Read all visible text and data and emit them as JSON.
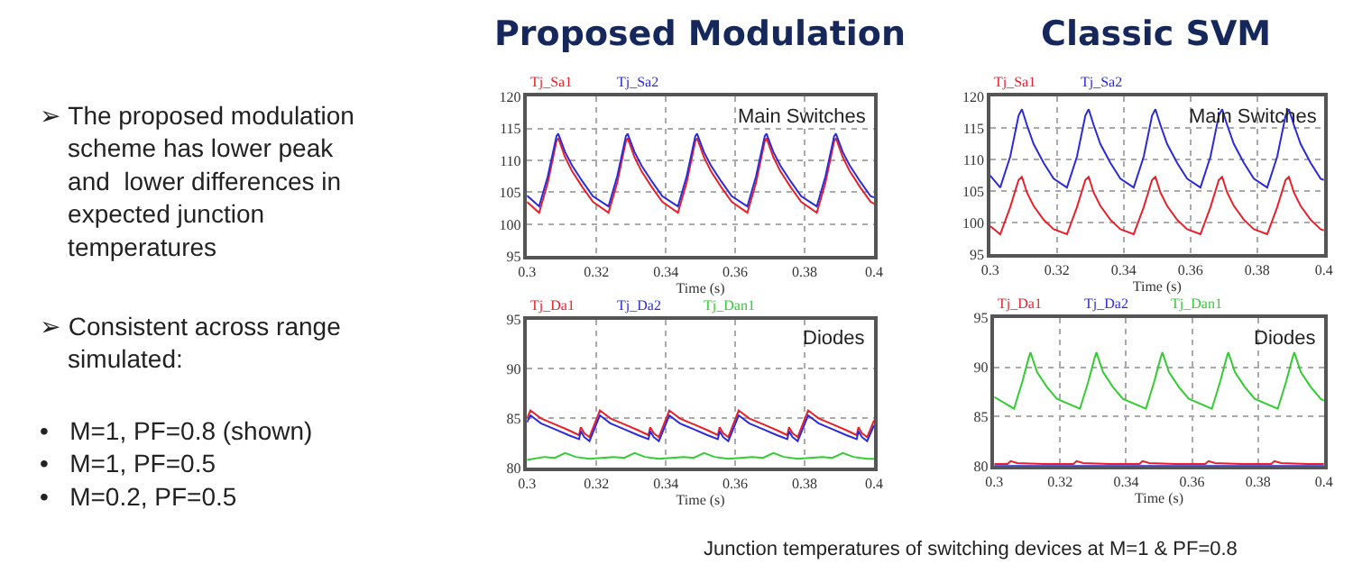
{
  "chart_data": [
    {
      "type": "other",
      "annotations": [
        "➢ The proposed modulation\n    scheme has lower peak\n    and  lower differences in\n    expected junction\n    temperatures",
        "➢ Consistent across range\n    simulated:",
        "•   M=1, PF=0.8 (shown)\n•   M=1, PF=0.5\n•   M=0.2, PF=0.5"
      ]
    },
    {
      "type": "line",
      "title": "Proposed Modulation",
      "xlabel": "Time (s)",
      "xlim": [
        0.3,
        0.4
      ],
      "xticks": [
        0.3,
        0.32,
        0.34,
        0.36,
        0.38,
        0.4
      ],
      "ylim": [
        95,
        120
      ],
      "yticks": [
        95,
        100,
        105,
        110,
        115,
        120
      ],
      "grid": true,
      "legend": "top left",
      "annotations": [
        "Main Switches"
      ],
      "series": [
        {
          "name": "Tj_Sa1",
          "color": "#e8202a",
          "x": [
            0.3,
            0.3035,
            0.306,
            0.3085,
            0.309,
            0.311,
            0.313,
            0.316,
            0.319,
            0.3235,
            0.326,
            0.3285,
            0.329,
            0.331,
            0.333,
            0.336,
            0.339,
            0.3435,
            0.346,
            0.3485,
            0.349,
            0.351,
            0.353,
            0.356,
            0.359,
            0.3635,
            0.366,
            0.3685,
            0.369,
            0.371,
            0.373,
            0.376,
            0.379,
            0.3835,
            0.386,
            0.3885,
            0.389,
            0.391,
            0.393,
            0.396,
            0.399,
            0.4
          ],
          "values": [
            103.5,
            101.8,
            106.5,
            113,
            113.5,
            110.5,
            108.3,
            105.8,
            103.5,
            101.8,
            106.5,
            113,
            113.5,
            110.5,
            108.3,
            105.8,
            103.5,
            101.8,
            106.5,
            113,
            113.5,
            110.5,
            108.3,
            105.8,
            103.5,
            101.8,
            106.5,
            113,
            113.5,
            110.5,
            108.3,
            105.8,
            103.5,
            101.8,
            106.5,
            113,
            113.5,
            110.5,
            108.3,
            105.8,
            103.5,
            103.2
          ]
        },
        {
          "name": "Tj_Sa2",
          "color": "#2b2bd9",
          "x": [
            0.3,
            0.3035,
            0.306,
            0.3085,
            0.309,
            0.311,
            0.313,
            0.316,
            0.319,
            0.3235,
            0.326,
            0.3285,
            0.329,
            0.331,
            0.333,
            0.336,
            0.339,
            0.3435,
            0.346,
            0.3485,
            0.349,
            0.351,
            0.353,
            0.356,
            0.359,
            0.3635,
            0.366,
            0.3685,
            0.369,
            0.371,
            0.373,
            0.376,
            0.379,
            0.3835,
            0.386,
            0.3885,
            0.389,
            0.391,
            0.393,
            0.396,
            0.399,
            0.4
          ],
          "values": [
            104.5,
            102.8,
            107.5,
            113.8,
            114.2,
            111.3,
            109.2,
            106.7,
            104.4,
            102.8,
            107.5,
            113.8,
            114.2,
            111.3,
            109.2,
            106.7,
            104.4,
            102.8,
            107.5,
            113.8,
            114.2,
            111.3,
            109.2,
            106.7,
            104.4,
            102.8,
            107.5,
            113.8,
            114.2,
            111.3,
            109.2,
            106.7,
            104.4,
            102.8,
            107.5,
            113.8,
            114.2,
            111.3,
            109.2,
            106.7,
            104.4,
            104.2
          ]
        }
      ]
    },
    {
      "type": "line",
      "title": "Classic SVM",
      "xlabel": "Time (s)",
      "xlim": [
        0.3,
        0.4
      ],
      "xticks": [
        0.3,
        0.32,
        0.34,
        0.36,
        0.38,
        0.4
      ],
      "ylim": [
        95,
        120
      ],
      "yticks": [
        95,
        100,
        105,
        110,
        115,
        120
      ],
      "grid": true,
      "legend": "top left",
      "annotations": [
        "Main Switches"
      ],
      "series": [
        {
          "name": "Tj_Sa1",
          "color": "#e8202a",
          "x": [
            0.3,
            0.303,
            0.306,
            0.3085,
            0.3095,
            0.311,
            0.313,
            0.316,
            0.319,
            0.323,
            0.326,
            0.3285,
            0.3295,
            0.331,
            0.333,
            0.336,
            0.339,
            0.343,
            0.346,
            0.3485,
            0.3495,
            0.351,
            0.353,
            0.356,
            0.359,
            0.363,
            0.366,
            0.3685,
            0.3695,
            0.371,
            0.373,
            0.376,
            0.379,
            0.383,
            0.386,
            0.3885,
            0.3895,
            0.391,
            0.393,
            0.396,
            0.399,
            0.4
          ],
          "values": [
            99.5,
            98.2,
            102.5,
            106.8,
            107.3,
            104.8,
            102.7,
            100.5,
            99,
            98.2,
            102.5,
            106.8,
            107.3,
            104.8,
            102.7,
            100.5,
            99,
            98.2,
            102.5,
            106.8,
            107.3,
            104.8,
            102.7,
            100.5,
            99,
            98.2,
            102.5,
            106.8,
            107.3,
            104.8,
            102.7,
            100.5,
            99,
            98.2,
            102.5,
            106.8,
            107.3,
            104.8,
            102.7,
            100.5,
            99,
            98.8
          ]
        },
        {
          "name": "Tj_Sa2",
          "color": "#2b2bd9",
          "x": [
            0.3,
            0.303,
            0.306,
            0.3085,
            0.3095,
            0.311,
            0.313,
            0.316,
            0.319,
            0.323,
            0.326,
            0.3285,
            0.3295,
            0.331,
            0.333,
            0.336,
            0.339,
            0.343,
            0.346,
            0.3485,
            0.3495,
            0.351,
            0.353,
            0.356,
            0.359,
            0.363,
            0.366,
            0.3685,
            0.3695,
            0.371,
            0.373,
            0.376,
            0.379,
            0.383,
            0.386,
            0.3885,
            0.3895,
            0.391,
            0.393,
            0.396,
            0.399,
            0.4
          ],
          "values": [
            107.5,
            105.6,
            110.5,
            117,
            118,
            115.5,
            112.5,
            109.5,
            107,
            105.6,
            110.5,
            117,
            118,
            115.5,
            112.5,
            109.5,
            107,
            105.6,
            110.5,
            117,
            118,
            115.5,
            112.5,
            109.5,
            107,
            105.6,
            110.5,
            117,
            118,
            115.5,
            112.5,
            109.5,
            107,
            105.6,
            110.5,
            117,
            118,
            115.5,
            112.5,
            109.5,
            107,
            106.8
          ]
        }
      ]
    },
    {
      "type": "line",
      "xlabel": "Time (s)",
      "xlim": [
        0.3,
        0.4
      ],
      "xticks": [
        0.3,
        0.32,
        0.34,
        0.36,
        0.38,
        0.4
      ],
      "ylim": [
        80,
        95
      ],
      "yticks": [
        80,
        85,
        90,
        95
      ],
      "grid": true,
      "legend": "top left",
      "annotations": [
        "Diodes"
      ],
      "series": [
        {
          "name": "Tj_Da1",
          "color": "#e8202a",
          "x": [
            0.3,
            0.301,
            0.304,
            0.308,
            0.312,
            0.315,
            0.3155,
            0.3165,
            0.318,
            0.321,
            0.324,
            0.328,
            0.332,
            0.335,
            0.3355,
            0.3365,
            0.338,
            0.341,
            0.344,
            0.348,
            0.352,
            0.355,
            0.3555,
            0.3565,
            0.358,
            0.361,
            0.364,
            0.368,
            0.372,
            0.375,
            0.3755,
            0.3765,
            0.378,
            0.381,
            0.384,
            0.388,
            0.392,
            0.395,
            0.3955,
            0.3965,
            0.398,
            0.4
          ],
          "values": [
            85.0,
            85.8,
            85.0,
            84.4,
            83.8,
            83.3,
            84.1,
            83.5,
            83.1,
            85.8,
            85.0,
            84.4,
            83.8,
            83.3,
            84.1,
            83.5,
            83.1,
            85.8,
            85.0,
            84.4,
            83.8,
            83.3,
            84.1,
            83.5,
            83.1,
            85.8,
            85.0,
            84.4,
            83.8,
            83.3,
            84.1,
            83.5,
            83.1,
            85.8,
            85.0,
            84.4,
            83.8,
            83.3,
            84.1,
            83.5,
            83.1,
            84.8
          ]
        },
        {
          "name": "Tj_Da2",
          "color": "#2b2bd9",
          "x": [
            0.3,
            0.301,
            0.304,
            0.308,
            0.312,
            0.315,
            0.3155,
            0.3165,
            0.318,
            0.321,
            0.324,
            0.328,
            0.332,
            0.335,
            0.3355,
            0.3365,
            0.338,
            0.341,
            0.344,
            0.348,
            0.352,
            0.355,
            0.3555,
            0.3565,
            0.358,
            0.361,
            0.364,
            0.368,
            0.372,
            0.375,
            0.3755,
            0.3765,
            0.378,
            0.381,
            0.384,
            0.388,
            0.392,
            0.395,
            0.3955,
            0.3965,
            0.398,
            0.4
          ],
          "values": [
            84.6,
            85.3,
            84.5,
            83.9,
            83.3,
            82.9,
            83.7,
            83.1,
            82.7,
            85.3,
            84.5,
            83.9,
            83.3,
            82.9,
            83.7,
            83.1,
            82.7,
            85.3,
            84.5,
            83.9,
            83.3,
            82.9,
            83.7,
            83.1,
            82.7,
            85.3,
            84.5,
            83.9,
            83.3,
            82.9,
            83.7,
            83.1,
            82.7,
            85.3,
            84.5,
            83.9,
            83.3,
            82.9,
            83.7,
            83.1,
            82.7,
            84.3
          ]
        },
        {
          "name": "Tj_Dan1",
          "color": "#33cc33",
          "x": [
            0.3,
            0.305,
            0.308,
            0.311,
            0.314,
            0.318,
            0.325,
            0.328,
            0.331,
            0.334,
            0.338,
            0.345,
            0.348,
            0.351,
            0.354,
            0.358,
            0.365,
            0.368,
            0.371,
            0.374,
            0.378,
            0.385,
            0.388,
            0.391,
            0.394,
            0.398,
            0.4
          ],
          "values": [
            80.8,
            81.1,
            81.0,
            81.5,
            81.1,
            80.9,
            81.1,
            81.0,
            81.5,
            81.1,
            80.9,
            81.1,
            81.0,
            81.5,
            81.1,
            80.9,
            81.1,
            81.0,
            81.5,
            81.1,
            80.9,
            81.1,
            81.0,
            81.5,
            81.1,
            80.9,
            80.9
          ]
        }
      ]
    },
    {
      "type": "line",
      "xlabel": "Time (s)",
      "xlim": [
        0.3,
        0.4
      ],
      "xticks": [
        0.3,
        0.32,
        0.34,
        0.36,
        0.38,
        0.4
      ],
      "ylim": [
        80,
        95
      ],
      "yticks": [
        80,
        85,
        90,
        95
      ],
      "grid": true,
      "legend": "top left",
      "annotations": [
        "Diodes",
        "Junction temperatures of switching devices at M=1 & PF=0.8"
      ],
      "series": [
        {
          "name": "Tj_Da1",
          "color": "#e8202a",
          "x": [
            0.3,
            0.304,
            0.305,
            0.307,
            0.315,
            0.324,
            0.325,
            0.327,
            0.335,
            0.344,
            0.345,
            0.347,
            0.355,
            0.364,
            0.365,
            0.367,
            0.375,
            0.384,
            0.385,
            0.387,
            0.395,
            0.4
          ],
          "values": [
            80.2,
            80.2,
            80.5,
            80.3,
            80.2,
            80.2,
            80.5,
            80.3,
            80.2,
            80.2,
            80.5,
            80.3,
            80.2,
            80.2,
            80.5,
            80.3,
            80.2,
            80.2,
            80.5,
            80.3,
            80.2,
            80.2
          ]
        },
        {
          "name": "Tj_Da2",
          "color": "#2b2bd9",
          "x": [
            0.3,
            0.4
          ],
          "values": [
            80.0,
            80.0
          ]
        },
        {
          "name": "Tj_Dan1",
          "color": "#33cc33",
          "x": [
            0.3,
            0.306,
            0.3085,
            0.3105,
            0.311,
            0.313,
            0.316,
            0.319,
            0.326,
            0.3285,
            0.3305,
            0.331,
            0.333,
            0.336,
            0.339,
            0.346,
            0.3485,
            0.3505,
            0.351,
            0.353,
            0.356,
            0.359,
            0.366,
            0.3685,
            0.3705,
            0.371,
            0.373,
            0.376,
            0.379,
            0.386,
            0.3885,
            0.3905,
            0.391,
            0.393,
            0.396,
            0.399,
            0.4
          ],
          "values": [
            87.0,
            85.8,
            88.5,
            91.0,
            91.5,
            89.5,
            88.0,
            86.8,
            85.8,
            88.5,
            91.0,
            91.5,
            89.5,
            88.0,
            86.8,
            85.8,
            88.5,
            91.0,
            91.5,
            89.5,
            88.0,
            86.8,
            85.8,
            88.5,
            91.0,
            91.5,
            89.5,
            88.0,
            86.8,
            85.8,
            88.5,
            91.0,
            91.5,
            89.5,
            88.0,
            86.8,
            86.6
          ]
        }
      ]
    }
  ]
}
